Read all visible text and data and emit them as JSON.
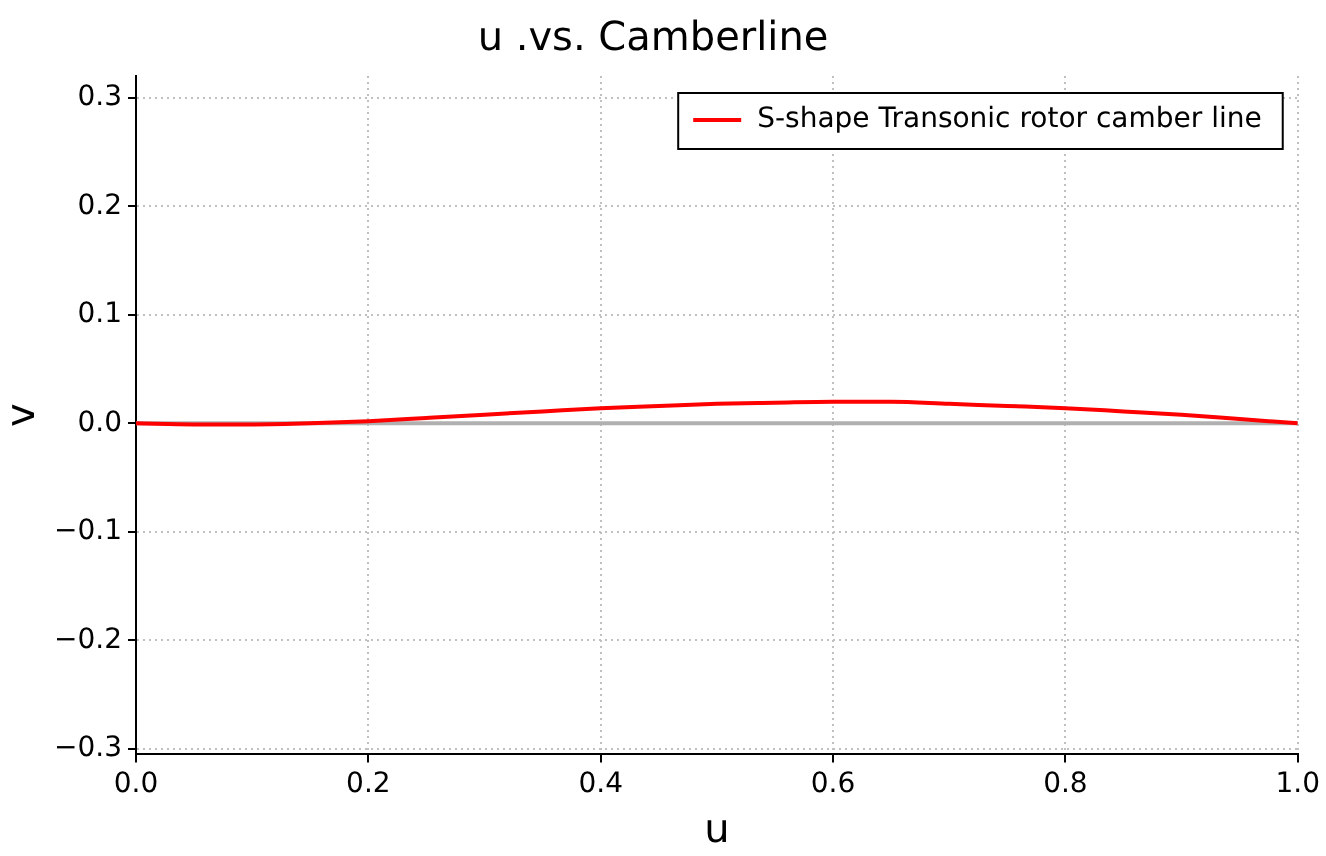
{
  "chart_data": {
    "type": "line",
    "title": "u .vs. Camberline",
    "xlabel": "u",
    "ylabel": "v",
    "xlim": [
      0,
      1
    ],
    "xticks": [
      {
        "value": 0,
        "label": "0.0"
      },
      0.2,
      0.4,
      0.6,
      0.8,
      {
        "value": 1,
        "label": "1.0"
      }
    ],
    "ylim": [
      -0.305,
      0.32
    ],
    "yticks": [
      {
        "value": -0.3,
        "label": "−0.3"
      },
      {
        "value": -0.2,
        "label": "−0.2"
      },
      {
        "value": -0.1,
        "label": "−0.1"
      },
      {
        "value": 0,
        "label": "0.0"
      },
      0.1,
      0.2,
      0.3
    ],
    "series": [
      {
        "name": "S-shape Transonic rotor camber line",
        "color": "#ff0000",
        "x": [
          0,
          0.05,
          0.1,
          0.15,
          0.2,
          0.25,
          0.3,
          0.35,
          0.4,
          0.45,
          0.5,
          0.55,
          0.6,
          0.65,
          0.7,
          0.75,
          0.8,
          0.85,
          0.9,
          0.95,
          1
        ],
        "values": [
          0,
          -0.001,
          -0.001,
          0,
          0.002,
          0.005,
          0.008,
          0.011,
          0.014,
          0.016,
          0.018,
          0.019,
          0.02,
          0.02,
          0.018,
          0.016,
          0.014,
          0.011,
          0.008,
          0.004,
          0
        ]
      }
    ],
    "ref_lines": [
      {
        "axis": "y",
        "value": 0,
        "color": "#b0b0b0"
      }
    ],
    "grid": true,
    "legend": "top right",
    "marker": "none",
    "line_style": "solid"
  }
}
